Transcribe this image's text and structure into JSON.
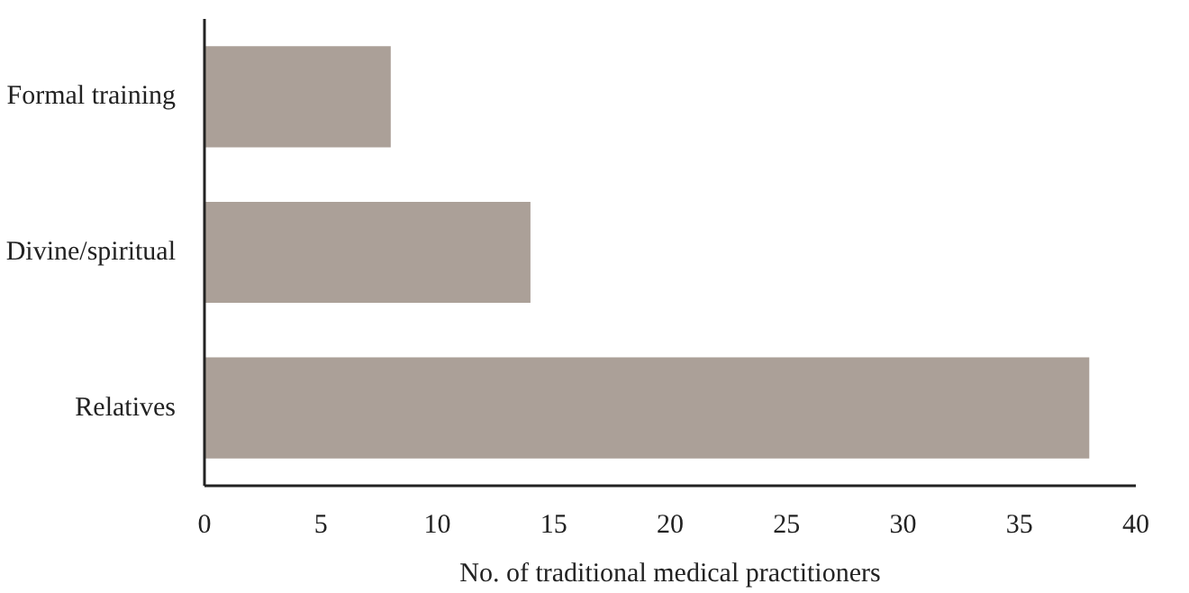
{
  "chart_data": {
    "type": "bar",
    "orientation": "horizontal",
    "categories": [
      "Formal training",
      "Divine/spiritual",
      "Relatives"
    ],
    "values": [
      8,
      14,
      38
    ],
    "color": "#aba098",
    "xlim": [
      0,
      40
    ],
    "xticks": [
      0,
      5,
      10,
      15,
      20,
      25,
      30,
      35,
      40
    ],
    "xlabel": "No. of traditional medical practitioners",
    "grid": false
  }
}
